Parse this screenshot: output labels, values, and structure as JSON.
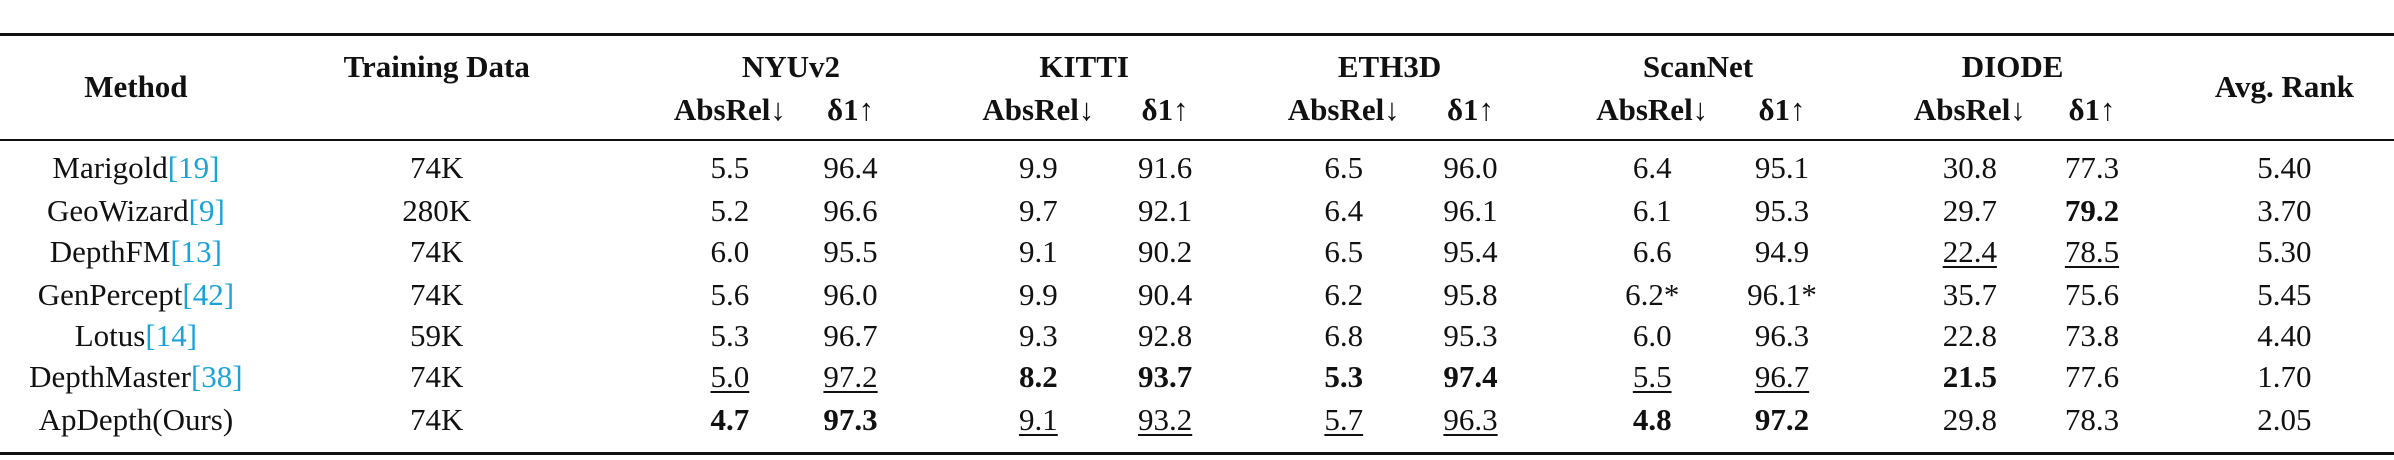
{
  "header": {
    "method": "Method",
    "training_data": "Training Data",
    "avg_rank": "Avg. Rank",
    "groups": [
      {
        "name": "NYUv2",
        "metrics": [
          "AbsRel↓",
          "δ1↑"
        ]
      },
      {
        "name": "KITTI",
        "metrics": [
          "AbsRel↓",
          "δ1↑"
        ]
      },
      {
        "name": "ETH3D",
        "metrics": [
          "AbsRel↓",
          "δ1↑"
        ]
      },
      {
        "name": "ScanNet",
        "metrics": [
          "AbsRel↓",
          "δ1↑"
        ]
      },
      {
        "name": "DIODE",
        "metrics": [
          "AbsRel↓",
          "δ1↑"
        ]
      }
    ]
  },
  "table": {
    "rows": [
      {
        "method": "Marigold",
        "ref": "[19]",
        "training_data": "74K",
        "values": [
          "5.5",
          "96.4",
          "9.9",
          "91.6",
          "6.5",
          "96.0",
          "6.4",
          "95.1",
          "30.8",
          "77.3"
        ],
        "avg_rank": "5.40"
      },
      {
        "method": "GeoWizard",
        "ref": "[9]",
        "training_data": "280K",
        "values": [
          "5.2",
          "96.6",
          "9.7",
          "92.1",
          "6.4",
          "96.1",
          "6.1",
          "95.3",
          "29.7",
          "79.2"
        ],
        "avg_rank": "3.70"
      },
      {
        "method": "DepthFM",
        "ref": "[13]",
        "training_data": "74K",
        "values": [
          "6.0",
          "95.5",
          "9.1",
          "90.2",
          "6.5",
          "95.4",
          "6.6",
          "94.9",
          "22.4",
          "78.5"
        ],
        "avg_rank": "5.30"
      },
      {
        "method": "GenPercept",
        "ref": "[42]",
        "training_data": "74K",
        "values": [
          "5.6",
          "96.0",
          "9.9",
          "90.4",
          "6.2",
          "95.8",
          "6.2*",
          "96.1*",
          "35.7",
          "75.6"
        ],
        "avg_rank": "5.45"
      },
      {
        "method": "Lotus",
        "ref": "[14]",
        "training_data": "59K",
        "values": [
          "5.3",
          "96.7",
          "9.3",
          "92.8",
          "6.8",
          "95.3",
          "6.0",
          "96.3",
          "22.8",
          "73.8"
        ],
        "avg_rank": "4.40"
      },
      {
        "method": "DepthMaster",
        "ref": "[38]",
        "training_data": "74K",
        "values": [
          "5.0",
          "97.2",
          "8.2",
          "93.7",
          "5.3",
          "97.4",
          "5.5",
          "96.7",
          "21.5",
          "77.6"
        ],
        "avg_rank": "1.70"
      },
      {
        "method": "ApDepth(Ours)",
        "ref": null,
        "training_data": "74K",
        "values": [
          "4.7",
          "97.3",
          "9.1",
          "93.2",
          "5.7",
          "96.3",
          "4.8",
          "97.2",
          "29.8",
          "78.3"
        ],
        "avg_rank": "2.05"
      }
    ]
  }
}
